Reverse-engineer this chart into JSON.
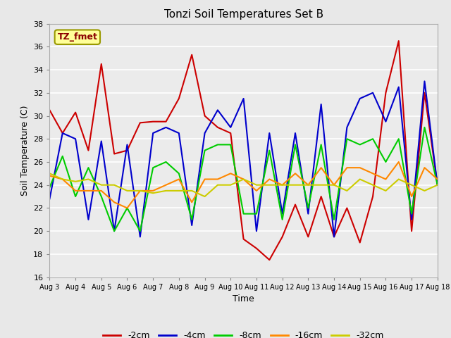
{
  "title": "Tonzi Soil Temperatures Set B",
  "xlabel": "Time",
  "ylabel": "Soil Temperature (C)",
  "annotation": "TZ_fmet",
  "annotation_color": "#8B0000",
  "annotation_bg": "#FFFF99",
  "annotation_edge": "#999900",
  "ylim": [
    16,
    38
  ],
  "xlim": [
    0,
    15
  ],
  "xtick_labels": [
    "Aug 3",
    "Aug 4",
    "Aug 5",
    "Aug 6",
    "Aug 7",
    "Aug 8",
    "Aug 9",
    "Aug 10",
    "Aug 11",
    "Aug 12",
    "Aug 13",
    "Aug 14",
    "Aug 15",
    "Aug 16",
    "Aug 17",
    "Aug 18"
  ],
  "ytick_values": [
    16,
    18,
    20,
    22,
    24,
    26,
    28,
    30,
    32,
    34,
    36,
    38
  ],
  "bg_color": "#E8E8E8",
  "plot_bg_color": "#EBEBEB",
  "grid_color": "#FFFFFF",
  "series": {
    "neg2cm": {
      "label": "-2cm",
      "color": "#CC0000",
      "values": [
        30.5,
        28.5,
        30.3,
        27.0,
        34.5,
        26.7,
        27.0,
        29.4,
        29.5,
        29.5,
        31.5,
        35.3,
        30.0,
        29.0,
        28.5,
        19.3,
        18.5,
        17.5,
        19.5,
        22.3,
        19.5,
        23.0,
        19.5,
        22.0,
        19.0,
        23.0,
        32.0,
        36.5,
        20.0,
        32.0,
        24.0
      ]
    },
    "neg4cm": {
      "label": "-4cm",
      "color": "#0000CC",
      "values": [
        22.8,
        28.5,
        28.0,
        21.0,
        27.8,
        20.0,
        27.5,
        19.5,
        28.5,
        29.0,
        28.5,
        20.5,
        28.5,
        30.5,
        29.0,
        31.5,
        20.0,
        28.5,
        21.5,
        28.5,
        21.5,
        31.0,
        19.5,
        29.0,
        31.5,
        32.0,
        29.5,
        32.5,
        21.0,
        33.0,
        24.0
      ]
    },
    "neg8cm": {
      "label": "-8cm",
      "color": "#00CC00",
      "values": [
        23.8,
        26.5,
        23.0,
        25.5,
        23.0,
        20.0,
        22.0,
        20.0,
        25.5,
        26.0,
        25.0,
        21.0,
        27.0,
        27.5,
        27.5,
        21.5,
        21.5,
        27.0,
        21.0,
        27.5,
        22.0,
        27.5,
        21.0,
        28.0,
        27.5,
        28.0,
        26.0,
        28.0,
        21.5,
        29.0,
        24.0
      ]
    },
    "neg16cm": {
      "label": "-16cm",
      "color": "#FF8800",
      "values": [
        24.8,
        24.5,
        23.5,
        23.5,
        23.5,
        22.5,
        22.0,
        23.5,
        23.5,
        24.0,
        24.5,
        22.5,
        24.5,
        24.5,
        25.0,
        24.5,
        23.5,
        24.5,
        24.0,
        25.0,
        24.0,
        25.5,
        24.0,
        25.5,
        25.5,
        25.0,
        24.5,
        26.0,
        23.0,
        25.5,
        24.5
      ]
    },
    "neg32cm": {
      "label": "-32cm",
      "color": "#CCCC00",
      "values": [
        25.0,
        24.5,
        24.3,
        24.5,
        24.0,
        24.0,
        23.5,
        23.5,
        23.3,
        23.5,
        23.5,
        23.5,
        23.0,
        24.0,
        24.0,
        24.5,
        24.0,
        24.0,
        24.0,
        24.0,
        24.0,
        24.0,
        24.0,
        23.5,
        24.5,
        24.0,
        23.5,
        24.5,
        24.0,
        23.5,
        24.0
      ]
    }
  }
}
